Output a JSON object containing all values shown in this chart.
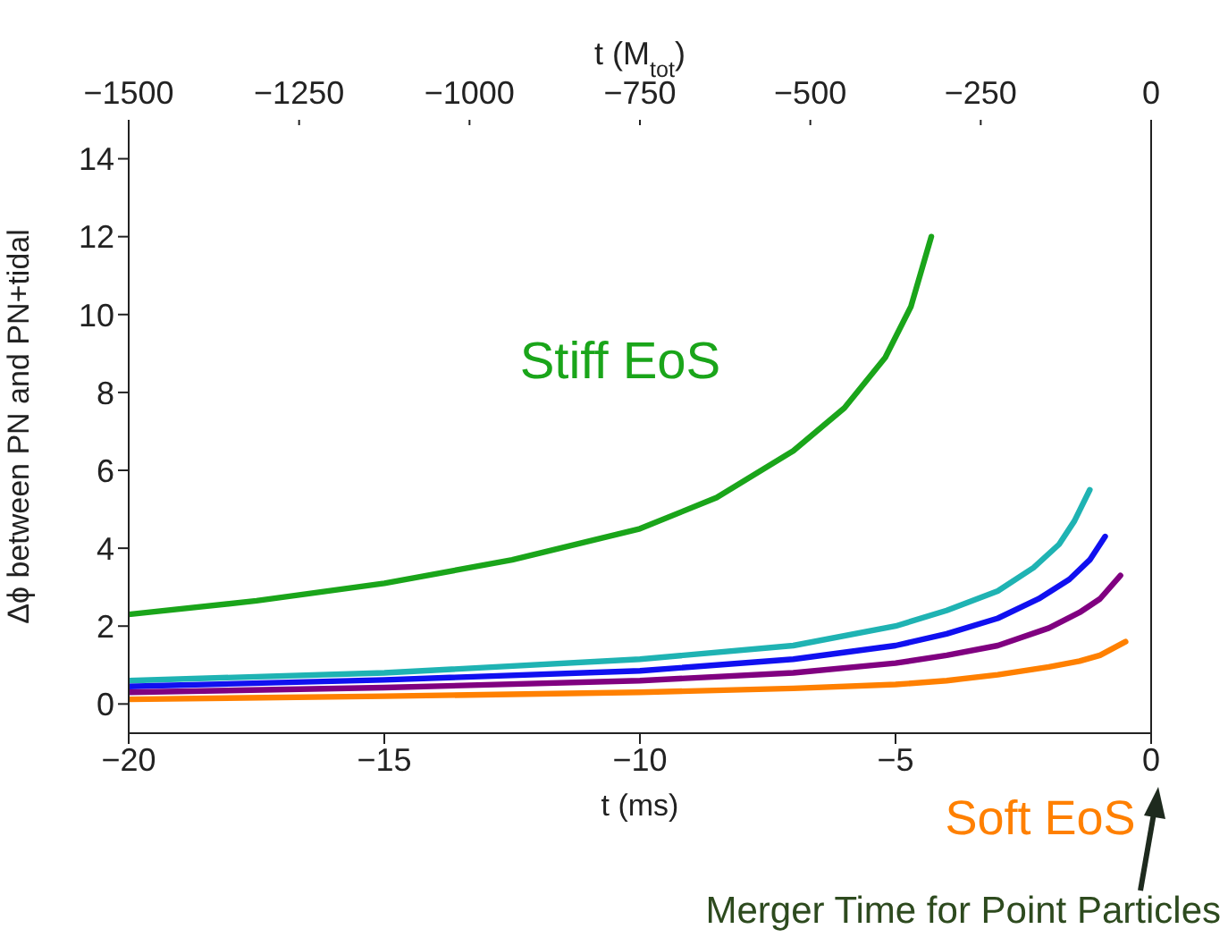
{
  "chart_data": {
    "type": "line",
    "xlabel": "t (ms)",
    "x2label": "t (M$_{tot}$)",
    "ylabel": "Δϕ between PN and PN+tidal",
    "xlim": [
      -20,
      0
    ],
    "xticks": [
      -20,
      -15,
      -10,
      -5,
      0
    ],
    "x2lim": [
      -1500,
      0
    ],
    "x2ticks": [
      -1500,
      -1250,
      -1000,
      -750,
      -500,
      -250,
      0
    ],
    "ylim": [
      -0.75,
      15
    ],
    "yticks": [
      0,
      2,
      4,
      6,
      8,
      10,
      12,
      14
    ],
    "marker": "none",
    "line_style": "solid",
    "annotations": [
      "Merger Time for Point Particles"
    ],
    "series": [
      {
        "name": "Stiff EoS",
        "color": "#1aa51a",
        "x": [
          -20,
          -17.5,
          -15,
          -12.5,
          -10,
          -8.5,
          -7,
          -6,
          -5.2,
          -4.7,
          -4.3
        ],
        "values": [
          2.3,
          2.65,
          3.1,
          3.7,
          4.5,
          5.3,
          6.5,
          7.6,
          8.9,
          10.2,
          12
        ]
      },
      {
        "color": "#1fb3b3",
        "x": [
          -20,
          -15,
          -10,
          -7,
          -5,
          -4,
          -3,
          -2.3,
          -1.8,
          -1.5,
          -1.2
        ],
        "values": [
          0.6,
          0.8,
          1.15,
          1.5,
          2.0,
          2.4,
          2.9,
          3.5,
          4.1,
          4.7,
          5.5
        ]
      },
      {
        "color": "#1010f0",
        "x": [
          -20,
          -15,
          -10,
          -7,
          -5,
          -4,
          -3,
          -2.2,
          -1.6,
          -1.2,
          -0.9
        ],
        "values": [
          0.45,
          0.62,
          0.85,
          1.15,
          1.5,
          1.8,
          2.2,
          2.7,
          3.2,
          3.7,
          4.3
        ]
      },
      {
        "color": "#800080",
        "x": [
          -20,
          -15,
          -10,
          -7,
          -5,
          -4,
          -3,
          -2,
          -1.4,
          -1,
          -0.6
        ],
        "values": [
          0.3,
          0.42,
          0.6,
          0.8,
          1.05,
          1.25,
          1.5,
          1.95,
          2.35,
          2.7,
          3.3
        ]
      },
      {
        "name": "Soft EoS",
        "color": "#ff8000",
        "x": [
          -20,
          -15,
          -10,
          -7,
          -5,
          -4,
          -3,
          -2,
          -1.4,
          -1,
          -0.5
        ],
        "values": [
          0.12,
          0.2,
          0.3,
          0.4,
          0.5,
          0.6,
          0.75,
          0.95,
          1.1,
          1.25,
          1.6
        ]
      }
    ]
  }
}
